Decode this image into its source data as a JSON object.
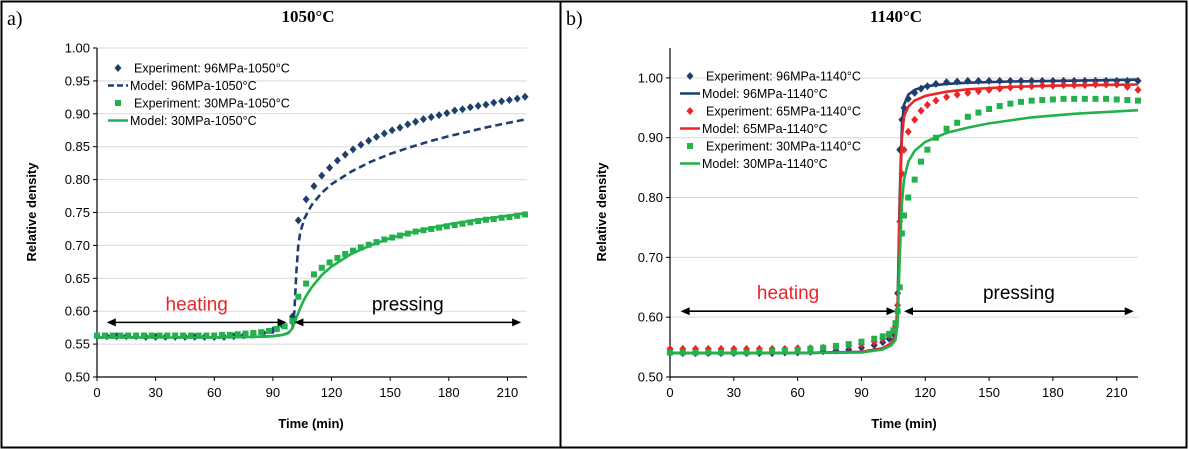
{
  "chart_data": [
    {
      "panel": "a)",
      "title": "1050°C",
      "type": "line",
      "xlabel": "Time (min)",
      "ylabel": "Relative density",
      "xlim": [
        0,
        220
      ],
      "ylim": [
        0.5,
        1.0
      ],
      "xticks": [
        0,
        30,
        60,
        90,
        120,
        150,
        180,
        210
      ],
      "yticks": [
        "0.50",
        "0.55",
        "0.60",
        "0.65",
        "0.70",
        "0.75",
        "0.80",
        "0.85",
        "0.90",
        "0.95",
        "1.00"
      ],
      "grid": "horizontal",
      "legend_position": "top-left",
      "annotations": [
        {
          "text": "heating",
          "color": "#e8262a",
          "x_from": 5,
          "x_to": 97,
          "y": 0.583
        },
        {
          "text": "pressing",
          "color": "#000000",
          "x_from": 101,
          "x_to": 217,
          "y": 0.583
        }
      ],
      "series": [
        {
          "name": "Experiment: 96MPa-1050°C",
          "kind": "markers",
          "marker": "diamond",
          "color": "#1f3f6e",
          "x": [
            0,
            5,
            10,
            15,
            20,
            25,
            30,
            35,
            40,
            45,
            50,
            55,
            60,
            65,
            70,
            75,
            80,
            85,
            90,
            95,
            100,
            103,
            107,
            111,
            115,
            119,
            123,
            127,
            131,
            135,
            139,
            143,
            147,
            151,
            155,
            159,
            163,
            167,
            171,
            175,
            179,
            183,
            187,
            191,
            195,
            199,
            203,
            207,
            211,
            215,
            219
          ],
          "y": [
            0.562,
            0.562,
            0.562,
            0.562,
            0.562,
            0.561,
            0.561,
            0.561,
            0.561,
            0.561,
            0.561,
            0.561,
            0.561,
            0.561,
            0.562,
            0.563,
            0.565,
            0.567,
            0.571,
            0.578,
            0.592,
            0.738,
            0.77,
            0.79,
            0.806,
            0.818,
            0.829,
            0.838,
            0.846,
            0.853,
            0.859,
            0.865,
            0.87,
            0.875,
            0.879,
            0.884,
            0.888,
            0.892,
            0.895,
            0.898,
            0.901,
            0.905,
            0.907,
            0.91,
            0.912,
            0.914,
            0.917,
            0.919,
            0.921,
            0.923,
            0.926
          ]
        },
        {
          "name": "Model: 96MPa-1050°C",
          "kind": "line",
          "dash": "dashed",
          "color": "#1f3f6e",
          "x": [
            0,
            20,
            40,
            60,
            80,
            90,
            95,
            98,
            100,
            101,
            102,
            103,
            104,
            106,
            108,
            110,
            115,
            120,
            130,
            140,
            150,
            160,
            170,
            180,
            190,
            200,
            210,
            220
          ],
          "y": [
            0.56,
            0.56,
            0.56,
            0.56,
            0.561,
            0.562,
            0.564,
            0.567,
            0.575,
            0.6,
            0.66,
            0.7,
            0.72,
            0.74,
            0.752,
            0.762,
            0.78,
            0.793,
            0.812,
            0.827,
            0.839,
            0.849,
            0.858,
            0.866,
            0.873,
            0.88,
            0.886,
            0.892
          ]
        },
        {
          "name": "Experiment: 30MPa-1050°C",
          "kind": "markers",
          "marker": "square",
          "color": "#22b14c",
          "x": [
            0,
            4,
            8,
            12,
            16,
            20,
            24,
            28,
            32,
            36,
            40,
            44,
            48,
            52,
            56,
            60,
            64,
            68,
            72,
            76,
            80,
            84,
            88,
            92,
            96,
            100,
            103,
            107,
            111,
            115,
            119,
            123,
            127,
            131,
            135,
            139,
            143,
            147,
            151,
            155,
            159,
            163,
            167,
            171,
            175,
            179,
            183,
            187,
            191,
            195,
            199,
            203,
            207,
            211,
            215,
            219
          ],
          "y": [
            0.563,
            0.563,
            0.563,
            0.563,
            0.563,
            0.563,
            0.563,
            0.563,
            0.563,
            0.563,
            0.563,
            0.563,
            0.563,
            0.563,
            0.563,
            0.563,
            0.564,
            0.564,
            0.565,
            0.566,
            0.567,
            0.568,
            0.57,
            0.573,
            0.577,
            0.585,
            0.622,
            0.642,
            0.656,
            0.666,
            0.674,
            0.681,
            0.687,
            0.692,
            0.697,
            0.701,
            0.705,
            0.709,
            0.712,
            0.715,
            0.718,
            0.721,
            0.723,
            0.725,
            0.727,
            0.729,
            0.731,
            0.733,
            0.735,
            0.737,
            0.739,
            0.74,
            0.742,
            0.743,
            0.745,
            0.747
          ]
        },
        {
          "name": "Model: 30MPa-1050°C",
          "kind": "line",
          "dash": "solid",
          "color": "#22b14c",
          "x": [
            0,
            20,
            40,
            60,
            80,
            90,
            95,
            98,
            100,
            102,
            104,
            106,
            108,
            110,
            115,
            120,
            130,
            140,
            150,
            160,
            170,
            180,
            190,
            200,
            210,
            220
          ],
          "y": [
            0.56,
            0.56,
            0.56,
            0.56,
            0.561,
            0.562,
            0.564,
            0.567,
            0.574,
            0.59,
            0.605,
            0.618,
            0.628,
            0.637,
            0.655,
            0.668,
            0.687,
            0.7,
            0.711,
            0.719,
            0.726,
            0.732,
            0.737,
            0.741,
            0.745,
            0.749
          ]
        }
      ]
    },
    {
      "panel": "b)",
      "title": "1140°C",
      "type": "line",
      "xlabel": "Time (min)",
      "ylabel": "Relative density",
      "xlim": [
        0,
        220
      ],
      "ylim": [
        0.5,
        1.05
      ],
      "xticks": [
        0,
        30,
        60,
        90,
        120,
        150,
        180,
        210
      ],
      "yticks": [
        "0.50",
        "0.60",
        "0.70",
        "0.80",
        "0.90",
        "1.00"
      ],
      "grid": "horizontal",
      "legend_position": "top-left",
      "annotations": [
        {
          "text": "heating",
          "color": "#e8262a",
          "x_from": 5,
          "x_to": 106,
          "y": 0.61
        },
        {
          "text": "pressing",
          "color": "#000000",
          "x_from": 110,
          "x_to": 218,
          "y": 0.61
        }
      ],
      "series": [
        {
          "name": "Experiment: 96MPa-1140°C",
          "kind": "markers",
          "marker": "diamond",
          "color": "#1f3f6e",
          "x": [
            0,
            6,
            12,
            18,
            24,
            30,
            36,
            42,
            48,
            54,
            60,
            66,
            72,
            78,
            84,
            90,
            96,
            100,
            103,
            105,
            106,
            107,
            108,
            109,
            110,
            112,
            115,
            118,
            121,
            125,
            130,
            135,
            140,
            145,
            150,
            155,
            160,
            165,
            170,
            175,
            180,
            185,
            190,
            195,
            200,
            205,
            210,
            215,
            220
          ],
          "y": [
            0.54,
            0.54,
            0.54,
            0.54,
            0.54,
            0.54,
            0.54,
            0.54,
            0.54,
            0.541,
            0.541,
            0.542,
            0.543,
            0.544,
            0.546,
            0.549,
            0.553,
            0.558,
            0.564,
            0.572,
            0.585,
            0.64,
            0.88,
            0.93,
            0.95,
            0.965,
            0.975,
            0.982,
            0.986,
            0.99,
            0.993,
            0.994,
            0.995,
            0.995,
            0.995,
            0.995,
            0.995,
            0.995,
            0.995,
            0.995,
            0.995,
            0.995,
            0.995,
            0.995,
            0.995,
            0.995,
            0.995,
            0.995,
            0.995
          ]
        },
        {
          "name": "Model: 96MPa-1140°C",
          "kind": "line",
          "dash": "solid",
          "color": "#1f3f6e",
          "x": [
            0,
            30,
            60,
            90,
            100,
            104,
            106,
            107,
            108,
            109,
            110,
            112,
            115,
            120,
            130,
            140,
            160,
            180,
            200,
            220
          ],
          "y": [
            0.54,
            0.54,
            0.54,
            0.542,
            0.548,
            0.556,
            0.57,
            0.62,
            0.8,
            0.92,
            0.955,
            0.972,
            0.98,
            0.986,
            0.99,
            0.992,
            0.994,
            0.995,
            0.996,
            0.997
          ]
        },
        {
          "name": "Experiment: 65MPa-1140°C",
          "kind": "markers",
          "marker": "diamond",
          "color": "#e8262a",
          "x": [
            0,
            6,
            12,
            18,
            24,
            30,
            36,
            42,
            48,
            54,
            60,
            66,
            72,
            78,
            84,
            90,
            96,
            100,
            103,
            105,
            106,
            107,
            108,
            109,
            110,
            112,
            115,
            118,
            121,
            125,
            130,
            135,
            140,
            145,
            150,
            155,
            160,
            165,
            170,
            175,
            180,
            185,
            190,
            195,
            200,
            205,
            210,
            215,
            220
          ],
          "y": [
            0.547,
            0.547,
            0.547,
            0.547,
            0.547,
            0.547,
            0.547,
            0.547,
            0.547,
            0.547,
            0.548,
            0.548,
            0.549,
            0.55,
            0.552,
            0.555,
            0.559,
            0.564,
            0.57,
            0.577,
            0.585,
            0.62,
            0.76,
            0.84,
            0.88,
            0.91,
            0.93,
            0.945,
            0.955,
            0.962,
            0.968,
            0.972,
            0.975,
            0.978,
            0.98,
            0.982,
            0.984,
            0.985,
            0.986,
            0.987,
            0.987,
            0.988,
            0.988,
            0.988,
            0.989,
            0.989,
            0.989,
            0.985,
            0.98
          ]
        },
        {
          "name": "Model: 65MPa-1140°C",
          "kind": "line",
          "dash": "solid",
          "color": "#e8262a",
          "x": [
            0,
            30,
            60,
            90,
            100,
            104,
            106,
            107,
            108,
            109,
            110,
            112,
            115,
            120,
            130,
            140,
            160,
            180,
            200,
            220
          ],
          "y": [
            0.54,
            0.54,
            0.54,
            0.542,
            0.548,
            0.556,
            0.568,
            0.61,
            0.78,
            0.9,
            0.935,
            0.952,
            0.962,
            0.97,
            0.977,
            0.981,
            0.985,
            0.987,
            0.988,
            0.989
          ]
        },
        {
          "name": "Experiment: 30MPa-1140°C",
          "kind": "markers",
          "marker": "square",
          "color": "#22b14c",
          "x": [
            0,
            6,
            12,
            18,
            24,
            30,
            36,
            42,
            48,
            54,
            60,
            66,
            72,
            78,
            84,
            90,
            96,
            100,
            103,
            105,
            106,
            107,
            108,
            109,
            110,
            112,
            115,
            118,
            121,
            125,
            130,
            135,
            140,
            145,
            150,
            155,
            160,
            165,
            170,
            175,
            180,
            185,
            190,
            195,
            200,
            205,
            210,
            215,
            220
          ],
          "y": [
            0.541,
            0.541,
            0.541,
            0.541,
            0.541,
            0.541,
            0.541,
            0.542,
            0.543,
            0.544,
            0.545,
            0.547,
            0.549,
            0.552,
            0.555,
            0.559,
            0.564,
            0.568,
            0.572,
            0.578,
            0.59,
            0.61,
            0.65,
            0.74,
            0.77,
            0.8,
            0.83,
            0.86,
            0.88,
            0.9,
            0.915,
            0.925,
            0.935,
            0.942,
            0.948,
            0.953,
            0.957,
            0.96,
            0.962,
            0.963,
            0.964,
            0.965,
            0.965,
            0.965,
            0.965,
            0.965,
            0.964,
            0.963,
            0.962
          ]
        },
        {
          "name": "Model: 30MPa-1140°C",
          "kind": "line",
          "dash": "solid",
          "color": "#22b14c",
          "x": [
            0,
            30,
            60,
            90,
            100,
            104,
            106,
            107,
            108,
            109,
            110,
            112,
            115,
            120,
            130,
            140,
            150,
            160,
            170,
            180,
            190,
            200,
            210,
            220
          ],
          "y": [
            0.54,
            0.54,
            0.54,
            0.541,
            0.546,
            0.553,
            0.562,
            0.59,
            0.7,
            0.79,
            0.83,
            0.86,
            0.878,
            0.893,
            0.908,
            0.917,
            0.924,
            0.929,
            0.934,
            0.937,
            0.94,
            0.942,
            0.944,
            0.946
          ]
        }
      ]
    }
  ]
}
